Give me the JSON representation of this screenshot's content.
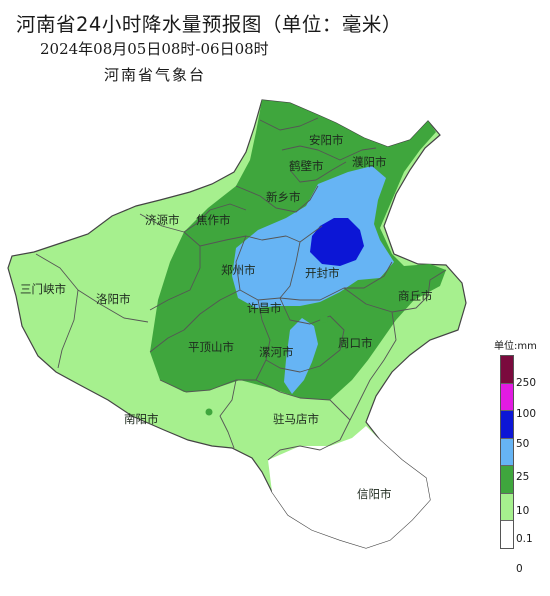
{
  "header": {
    "title": "河南省24小时降水量预报图（单位：毫米）",
    "subtitle": "2024年08月05日08时-06日08时",
    "agency": "河南省气象台"
  },
  "cities": [
    {
      "name": "安阳市"
    },
    {
      "name": "鹤壁市"
    },
    {
      "name": "濮阳市"
    },
    {
      "name": "新乡市"
    },
    {
      "name": "济源市"
    },
    {
      "name": "焦作市"
    },
    {
      "name": "郑州市"
    },
    {
      "name": "开封市"
    },
    {
      "name": "三门峡市"
    },
    {
      "name": "洛阳市"
    },
    {
      "name": "商丘市"
    },
    {
      "name": "许昌市"
    },
    {
      "name": "平顶山市"
    },
    {
      "name": "漯河市"
    },
    {
      "name": "周口市"
    },
    {
      "name": "南阳市"
    },
    {
      "name": "驻马店市"
    },
    {
      "name": "信阳市"
    }
  ],
  "legend": {
    "unit": "单位:mm",
    "levels": [
      {
        "label": "250",
        "color": "#7a0a3d"
      },
      {
        "label": "100",
        "color": "#e21be2"
      },
      {
        "label": "50",
        "color": "#0c16d6"
      },
      {
        "label": "25",
        "color": "#66b4f4"
      },
      {
        "label": "10",
        "color": "#3fa63d"
      },
      {
        "label": "0.1",
        "color": "#a6f08e"
      },
      {
        "label": "0",
        "color": "#ffffff"
      }
    ]
  }
}
